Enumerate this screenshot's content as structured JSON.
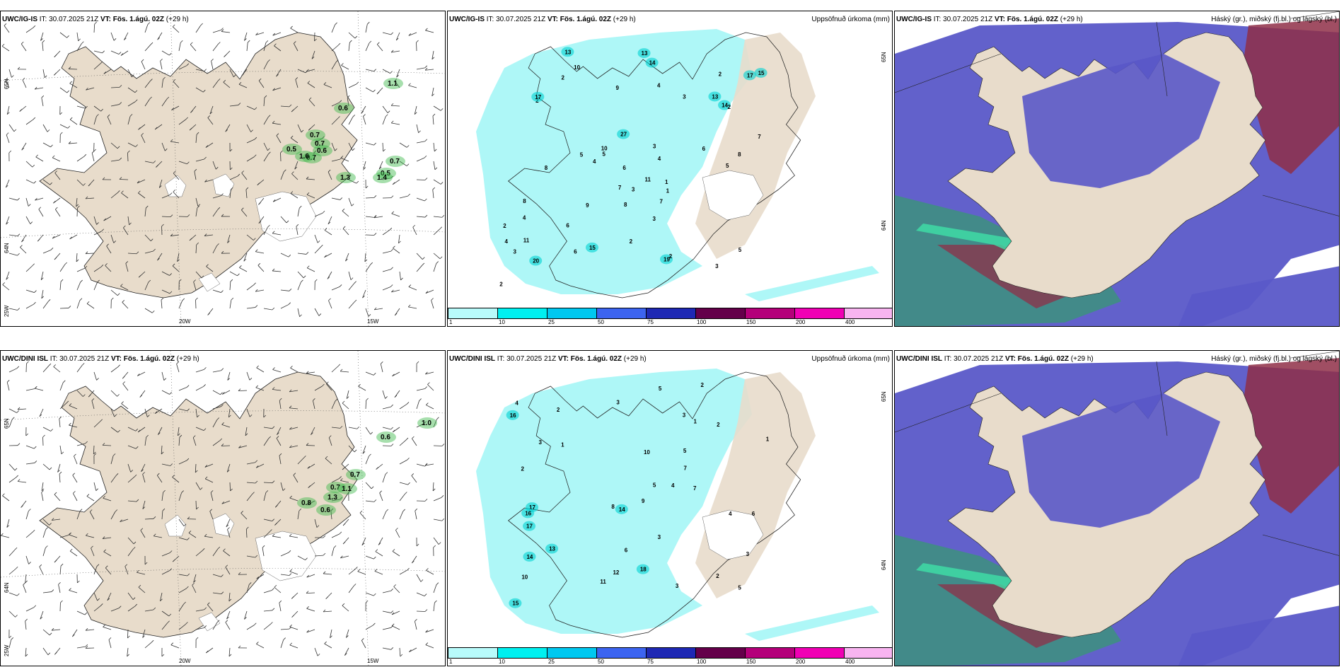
{
  "colors": {
    "land": "#e8dccb",
    "sea": "#ffffff",
    "precip_light": "#aef7f7",
    "cloud_high": "#3f8f82",
    "cloud_mid": "#5a58c8",
    "cloud_low": "#8f2f48",
    "gust_green": "#3cb84a"
  },
  "rows": [
    {
      "model": "UWC/IG-IS",
      "panels": [
        {
          "type": "wind",
          "it_label": "IT:",
          "it": "30.07.2025 21Z",
          "vt_label": "VT:",
          "vt": "Fös. 1.ágú. 02Z",
          "lead": "(+29 h)",
          "title_right": "",
          "lat_labels": [
            "65N",
            "64N",
            "25W"
          ],
          "lon_labels": [
            "20W",
            "15W"
          ],
          "gust_values": [
            "1.1",
            "0.6",
            "0.7",
            "0.7",
            "0.5",
            "0.6",
            "0.7",
            "1.6",
            "1.3",
            "0.7",
            "0.5",
            "1.4"
          ]
        },
        {
          "type": "precip",
          "it_label": "IT:",
          "it": "30.07.2025 21Z",
          "vt_label": "VT:",
          "vt": "Fös. 1.ágú. 02Z",
          "lead": "(+29 h)",
          "title_right": "Uppsöfnuð úrkoma (mm)",
          "lat_labels": [
            "65N",
            "64N"
          ],
          "precip_values": [
            "2",
            "8",
            "5",
            "3",
            "4",
            "2",
            "4",
            "6",
            "9",
            "17",
            "13",
            "10",
            "17",
            "15",
            "15",
            "14",
            "20",
            "14",
            "13",
            "19",
            "8",
            "10",
            "6",
            "27",
            "7",
            "5",
            "6",
            "3",
            "4",
            "2",
            "11",
            "8",
            "2",
            "13",
            "3",
            "4",
            "3",
            "2",
            "6",
            "1",
            "11",
            "9",
            "7",
            "8",
            "5",
            "2",
            "3",
            "4",
            "1",
            "2",
            "5",
            "7",
            "3",
            "2"
          ],
          "colorbar_ticks": [
            "1",
            "10",
            "25",
            "50",
            "75",
            "100",
            "150",
            "200",
            "400"
          ]
        },
        {
          "type": "cloud",
          "it_label": "IT:",
          "it": "30.07.2025 21Z",
          "vt_label": "VT:",
          "vt": "Fös. 1.ágú. 02Z",
          "lead": "(+29 h)",
          "title_right": "Háský (gr.), miðský (fj.bl.) og lágský (bl.)"
        }
      ]
    },
    {
      "model": "UWC/DINI ISL",
      "panels": [
        {
          "type": "wind",
          "it_label": "IT:",
          "it": "30.07.2025 21Z",
          "vt_label": "VT:",
          "vt": "Fös. 1.ágú. 02Z",
          "lead": "(+29 h)",
          "title_right": "",
          "lat_labels": [
            "65N",
            "64N",
            "25W"
          ],
          "lon_labels": [
            "20W",
            "15W"
          ],
          "gust_values": [
            "1.0",
            "0.6",
            "0.7",
            "0.7",
            "1.1",
            "0.8",
            "0.6",
            "1.3"
          ]
        },
        {
          "type": "precip",
          "it_label": "IT:",
          "it": "30.07.2025 21Z",
          "vt_label": "VT:",
          "vt": "Fös. 1.ágú. 02Z",
          "lead": "(+29 h)",
          "title_right": "Uppsöfnuð úrkoma (mm)",
          "lat_labels": [
            "65N",
            "64N"
          ],
          "precip_values": [
            "2",
            "1",
            "5",
            "3",
            "9",
            "7",
            "15",
            "11",
            "10",
            "13",
            "17",
            "14",
            "12",
            "16",
            "17",
            "16",
            "18",
            "14",
            "10",
            "5",
            "3",
            "2",
            "6",
            "8",
            "4",
            "3",
            "1",
            "2",
            "5",
            "7",
            "3",
            "2",
            "4",
            "6",
            "5",
            "3",
            "1",
            "2",
            "4",
            "3"
          ],
          "colorbar_ticks": [
            "1",
            "10",
            "25",
            "50",
            "75",
            "100",
            "150",
            "200",
            "400"
          ]
        },
        {
          "type": "cloud",
          "it_label": "IT:",
          "it": "30.07.2025 21Z",
          "vt_label": "VT:",
          "vt": "Fös. 1.ágú. 02Z",
          "lead": "(+29 h)",
          "title_right": "Háský (gr.), miðský (fj.bl.) og lágský (bl.)"
        }
      ]
    }
  ],
  "colorbar_colors": [
    "#b8fbfb",
    "#00f0f0",
    "#00c8f0",
    "#3c64f0",
    "#1e28b4",
    "#64004a",
    "#b4007a",
    "#f000b4",
    "#f8b4f0"
  ]
}
